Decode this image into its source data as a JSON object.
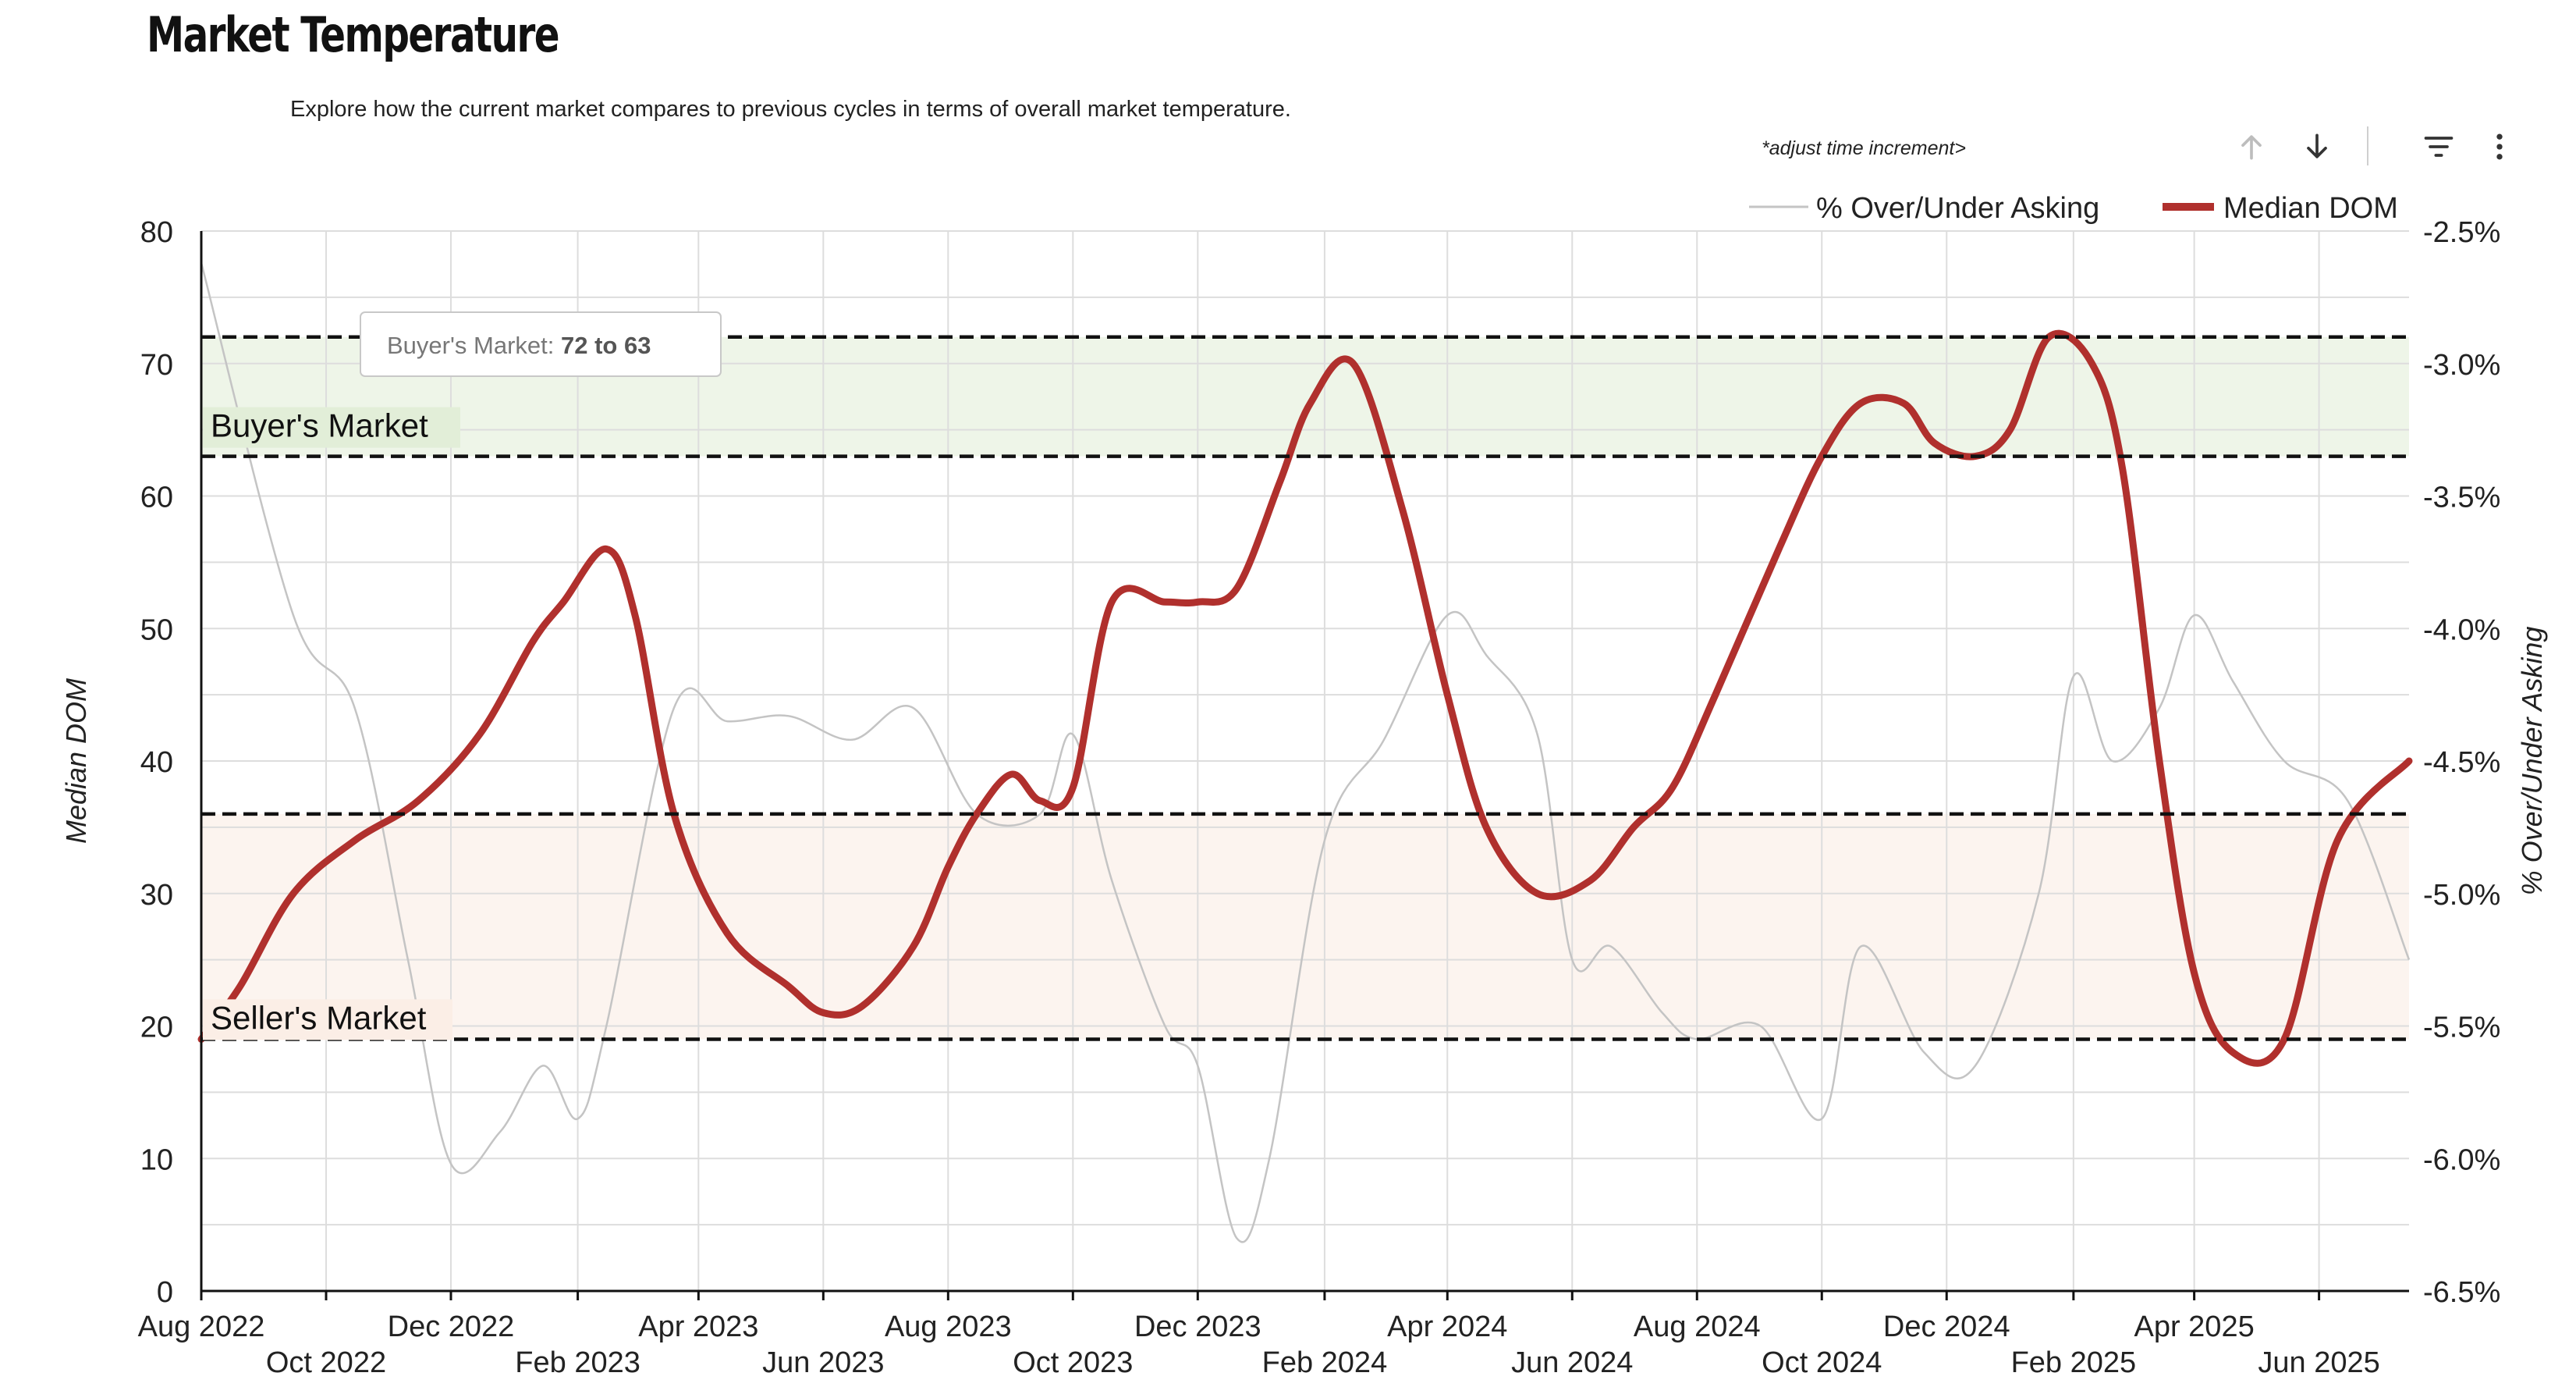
{
  "page": {
    "title": "Market Temperature",
    "subtitle": "Explore how the current market compares to previous cycles in terms of overall market temperature.",
    "increment_hint": "*adjust time increment>"
  },
  "toolbar": {
    "icons": [
      "arrow-up-icon",
      "arrow-down-icon",
      "filter-icon",
      "more-vertical-icon"
    ]
  },
  "colors": {
    "median_dom": "#b0302d",
    "over_under": "#c4c4c4",
    "buyers_band": "#eef5e8",
    "sellers_band": "#fcf4ef",
    "grid": "#dddddd"
  },
  "chart_data": {
    "type": "line",
    "x_tick_labels": [
      "Aug 2022",
      "Oct 2022",
      "Dec 2022",
      "Feb 2023",
      "Apr 2023",
      "Jun 2023",
      "Aug 2023",
      "Oct 2023",
      "Dec 2023",
      "Feb 2024",
      "Apr 2024",
      "Jun 2024",
      "Aug 2024",
      "Oct 2024",
      "Dec 2024",
      "Feb 2025",
      "Apr 2025",
      "Jun 2025"
    ],
    "xlim": [
      "2022-08-01",
      "2025-07-15"
    ],
    "ylabel_left": "Median DOM",
    "ylabel_right": "% Over/Under Asking",
    "ylim_left": [
      0,
      80
    ],
    "yticks_left": [
      0,
      10,
      20,
      30,
      40,
      50,
      60,
      70,
      80
    ],
    "ylim_right": [
      -6.5,
      -2.5
    ],
    "yticks_right": [
      "-6.5%",
      "-6.0%",
      "-5.5%",
      "-5.0%",
      "-4.5%",
      "-4.0%",
      "-3.5%",
      "-3.0%",
      "-2.5%"
    ],
    "grid": true,
    "legend_position": "top-right",
    "series": [
      {
        "name": "% Over/Under Asking",
        "axis": "right",
        "x": [
          "2022-08-01",
          "2022-09-15",
          "2022-10-15",
          "2022-11-10",
          "2022-12-01",
          "2022-12-25",
          "2023-01-15",
          "2023-02-01",
          "2023-02-15",
          "2023-03-20",
          "2023-04-15",
          "2023-05-15",
          "2023-06-15",
          "2023-07-15",
          "2023-08-15",
          "2023-09-15",
          "2023-10-01",
          "2023-10-20",
          "2023-11-15",
          "2023-12-01",
          "2023-12-20",
          "2024-01-05",
          "2024-02-01",
          "2024-03-01",
          "2024-04-01",
          "2024-04-20",
          "2024-05-15",
          "2024-06-01",
          "2024-06-20",
          "2024-07-15",
          "2024-08-01",
          "2024-09-01",
          "2024-10-01",
          "2024-10-20",
          "2024-11-20",
          "2024-12-15",
          "2025-01-15",
          "2025-02-01",
          "2025-02-20",
          "2025-03-15",
          "2025-04-01",
          "2025-04-20",
          "2025-05-15",
          "2025-06-15",
          "2025-07-15"
        ],
        "values": [
          -2.62,
          -3.95,
          -4.3,
          -5.25,
          -6.02,
          -5.9,
          -5.65,
          -5.85,
          -5.5,
          -4.3,
          -4.35,
          -4.33,
          -4.42,
          -4.3,
          -4.7,
          -4.7,
          -4.4,
          -4.95,
          -5.5,
          -5.65,
          -6.3,
          -6.0,
          -4.8,
          -4.42,
          -3.95,
          -4.1,
          -4.4,
          -5.25,
          -5.2,
          -5.45,
          -5.55,
          -5.5,
          -5.85,
          -5.2,
          -5.6,
          -5.65,
          -5.0,
          -4.18,
          -4.5,
          -4.3,
          -3.95,
          -4.2,
          -4.5,
          -4.65,
          -5.25
        ]
      },
      {
        "name": "Median DOM",
        "axis": "left",
        "x": [
          "2022-08-01",
          "2022-08-20",
          "2022-09-15",
          "2022-10-15",
          "2022-11-15",
          "2022-12-15",
          "2023-01-10",
          "2023-01-25",
          "2023-02-15",
          "2023-03-01",
          "2023-03-20",
          "2023-04-15",
          "2023-05-15",
          "2023-06-01",
          "2023-06-20",
          "2023-07-15",
          "2023-08-01",
          "2023-08-15",
          "2023-09-01",
          "2023-09-15",
          "2023-10-01",
          "2023-10-20",
          "2023-11-15",
          "2023-12-01",
          "2023-12-20",
          "2024-01-10",
          "2024-01-25",
          "2024-02-15",
          "2024-03-10",
          "2024-04-01",
          "2024-04-20",
          "2024-05-15",
          "2024-06-10",
          "2024-07-01",
          "2024-07-20",
          "2024-08-10",
          "2024-09-10",
          "2024-10-01",
          "2024-10-20",
          "2024-11-10",
          "2024-11-25",
          "2024-12-15",
          "2025-01-01",
          "2025-01-20",
          "2025-02-10",
          "2025-02-25",
          "2025-03-15",
          "2025-04-01",
          "2025-04-20",
          "2025-05-15",
          "2025-06-10",
          "2025-07-15"
        ],
        "values": [
          19,
          23,
          30,
          34,
          37,
          42,
          49,
          52,
          56,
          51,
          36,
          27,
          23,
          21,
          21.5,
          26,
          32,
          36,
          39,
          37,
          38,
          52,
          52,
          52,
          53,
          61,
          67,
          70,
          59,
          45,
          35,
          30,
          31,
          35,
          38,
          45,
          56,
          63,
          67,
          67,
          64,
          63,
          65,
          72,
          70,
          62,
          40,
          24,
          18,
          19,
          34,
          40
        ]
      }
    ],
    "bands": [
      {
        "label": "Buyer's Market",
        "from": 63,
        "to": 72
      },
      {
        "label": "Seller's Market",
        "from": 19,
        "to": 36
      }
    ],
    "tooltip": {
      "prefix": "Buyer's Market: ",
      "value": "72 to 63"
    }
  }
}
